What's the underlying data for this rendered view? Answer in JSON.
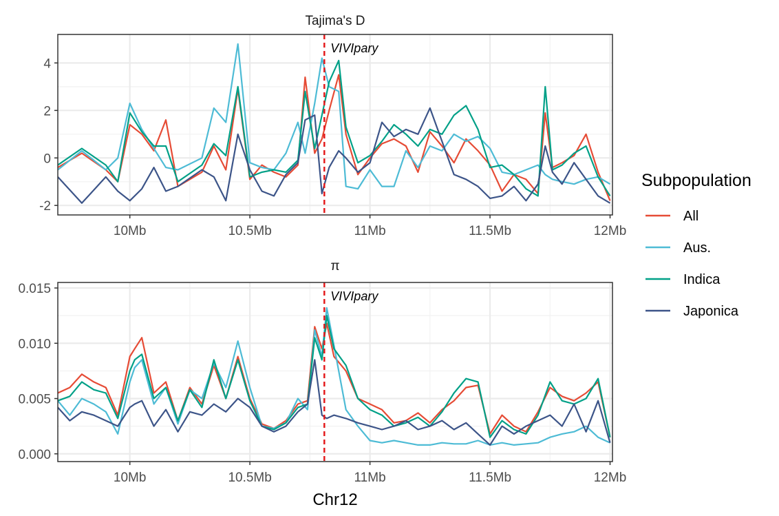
{
  "chart_data": {
    "type": "line",
    "xlabel": "Chr12",
    "x_ticks": [
      "10Mb",
      "10.5Mb",
      "11Mb",
      "11.5Mb",
      "12Mb"
    ],
    "x_tick_values": [
      10.0,
      10.5,
      11.0,
      11.5,
      12.0
    ],
    "xlim": [
      9.7,
      12.01
    ],
    "marker": {
      "x": 10.81,
      "label": "VIVIpary",
      "color": "#e41a1c",
      "style": "dashed"
    },
    "legend": {
      "title": "Subpopulation",
      "position": "right",
      "items": [
        {
          "name": "All",
          "color": "#e64b35"
        },
        {
          "name": "Aus.",
          "color": "#4dbbd5"
        },
        {
          "name": "Indica",
          "color": "#00a087"
        },
        {
          "name": "Japonica",
          "color": "#3c5488"
        }
      ]
    },
    "panels": [
      {
        "title": "Tajima's D",
        "y_ticks": [
          "-2",
          "0",
          "2",
          "4"
        ],
        "y_tick_values": [
          -2,
          0,
          2,
          4
        ],
        "ylim": [
          -2.4,
          5.2
        ],
        "grid": true,
        "x": [
          9.7,
          9.8,
          9.9,
          9.95,
          10.0,
          10.05,
          10.1,
          10.15,
          10.2,
          10.3,
          10.35,
          10.4,
          10.45,
          10.5,
          10.55,
          10.6,
          10.65,
          10.7,
          10.73,
          10.77,
          10.8,
          10.83,
          10.87,
          10.9,
          10.95,
          11.0,
          11.05,
          11.1,
          11.15,
          11.2,
          11.25,
          11.3,
          11.35,
          11.4,
          11.45,
          11.5,
          11.55,
          11.6,
          11.65,
          11.7,
          11.73,
          11.76,
          11.8,
          11.85,
          11.9,
          11.95,
          12.0
        ],
        "series": [
          {
            "name": "All",
            "values": [
              -0.4,
              0.2,
              -0.5,
              -1.0,
              1.4,
              1.0,
              0.3,
              1.6,
              -1.2,
              -0.6,
              0.5,
              -0.5,
              2.9,
              -0.9,
              -0.3,
              -0.6,
              -0.8,
              -0.3,
              3.4,
              0.2,
              0.8,
              2.0,
              3.5,
              1.0,
              -0.7,
              0.0,
              0.6,
              0.8,
              0.5,
              -0.6,
              1.1,
              0.5,
              -0.2,
              0.8,
              0.3,
              -0.3,
              -1.4,
              -0.7,
              -0.9,
              -1.5,
              1.9,
              -0.4,
              -0.2,
              0.1,
              1.0,
              -0.6,
              -1.8
            ]
          },
          {
            "name": "Aus.",
            "values": [
              -0.5,
              0.3,
              -0.5,
              0.0,
              2.3,
              1.2,
              0.4,
              -0.4,
              -0.5,
              0.0,
              2.1,
              1.5,
              4.8,
              -0.2,
              -0.4,
              -0.5,
              0.2,
              1.5,
              0.2,
              2.3,
              4.2,
              3.0,
              2.8,
              -1.2,
              -1.3,
              -0.5,
              -1.2,
              -1.2,
              0.3,
              -0.4,
              0.5,
              0.3,
              1.0,
              0.7,
              0.9,
              0.4,
              -0.6,
              -0.7,
              -0.5,
              -0.3,
              -0.7,
              -0.9,
              -1.0,
              -1.1,
              -0.9,
              -0.8,
              -1.1
            ]
          },
          {
            "name": "Indica",
            "values": [
              -0.3,
              0.4,
              -0.3,
              -1.0,
              1.9,
              1.1,
              0.5,
              0.5,
              -1.0,
              -0.3,
              0.6,
              0.1,
              3.0,
              -0.8,
              -0.6,
              -0.5,
              -0.6,
              -0.1,
              2.8,
              0.4,
              1.8,
              3.2,
              4.1,
              1.3,
              -0.2,
              0.1,
              0.7,
              1.4,
              1.0,
              0.5,
              1.2,
              1.0,
              1.8,
              2.2,
              1.2,
              -0.4,
              -0.3,
              -0.7,
              -1.3,
              -1.6,
              3.0,
              -0.5,
              -0.3,
              0.2,
              0.5,
              -0.8,
              -1.6
            ]
          },
          {
            "name": "Japonica",
            "values": [
              -0.8,
              -1.9,
              -0.8,
              -1.4,
              -1.8,
              -1.3,
              -0.4,
              -1.4,
              -1.2,
              -0.5,
              -0.8,
              -1.8,
              1.0,
              -0.5,
              -1.4,
              -1.6,
              -0.7,
              -0.2,
              1.6,
              1.8,
              -1.5,
              -0.4,
              0.3,
              0.0,
              -0.6,
              -0.2,
              1.5,
              0.9,
              1.2,
              1.0,
              2.1,
              0.7,
              -0.7,
              -0.9,
              -1.2,
              -1.7,
              -1.6,
              -1.2,
              -1.8,
              -1.1,
              0.5,
              -0.6,
              -1.1,
              -0.2,
              -0.9,
              -1.6,
              -1.9
            ]
          }
        ]
      },
      {
        "title": "π",
        "y_ticks": [
          "0.000",
          "0.005",
          "0.010",
          "0.015"
        ],
        "y_tick_values": [
          0.0,
          0.005,
          0.01,
          0.015
        ],
        "ylim": [
          -0.0007,
          0.0155
        ],
        "grid": true,
        "x": [
          9.7,
          9.75,
          9.8,
          9.85,
          9.9,
          9.95,
          10.0,
          10.02,
          10.05,
          10.1,
          10.15,
          10.2,
          10.25,
          10.3,
          10.35,
          10.4,
          10.45,
          10.5,
          10.55,
          10.6,
          10.65,
          10.7,
          10.74,
          10.77,
          10.8,
          10.82,
          10.85,
          10.9,
          10.95,
          11.0,
          11.05,
          11.1,
          11.15,
          11.2,
          11.25,
          11.3,
          11.35,
          11.4,
          11.45,
          11.5,
          11.55,
          11.6,
          11.65,
          11.7,
          11.75,
          11.8,
          11.85,
          11.9,
          11.95,
          12.0
        ],
        "series": [
          {
            "name": "All",
            "values": [
              0.0055,
              0.006,
              0.0072,
              0.0065,
              0.006,
              0.0035,
              0.0088,
              0.0095,
              0.0105,
              0.0055,
              0.0065,
              0.003,
              0.006,
              0.0045,
              0.008,
              0.005,
              0.0088,
              0.005,
              0.0027,
              0.0023,
              0.003,
              0.0045,
              0.0048,
              0.0115,
              0.0095,
              0.0118,
              0.0088,
              0.0075,
              0.005,
              0.0045,
              0.004,
              0.0028,
              0.003,
              0.0037,
              0.0028,
              0.004,
              0.0048,
              0.006,
              0.0062,
              0.0018,
              0.0035,
              0.0025,
              0.002,
              0.0038,
              0.006,
              0.0052,
              0.0048,
              0.0055,
              0.0065,
              0.0015
            ]
          },
          {
            "name": "Aus.",
            "values": [
              0.0048,
              0.0035,
              0.005,
              0.0045,
              0.0038,
              0.0018,
              0.0065,
              0.0078,
              0.0085,
              0.0045,
              0.006,
              0.0027,
              0.0058,
              0.005,
              0.0082,
              0.006,
              0.0102,
              0.006,
              0.0025,
              0.0023,
              0.0028,
              0.005,
              0.004,
              0.0112,
              0.0088,
              0.0132,
              0.0098,
              0.004,
              0.0025,
              0.0012,
              0.001,
              0.0012,
              0.001,
              0.0008,
              0.0008,
              0.001,
              0.0009,
              0.0009,
              0.0012,
              0.0008,
              0.001,
              0.0008,
              0.0009,
              0.001,
              0.0015,
              0.0018,
              0.002,
              0.0025,
              0.0015,
              0.001
            ]
          },
          {
            "name": "Indica",
            "values": [
              0.0048,
              0.0052,
              0.0065,
              0.0058,
              0.0055,
              0.0032,
              0.0075,
              0.0085,
              0.009,
              0.005,
              0.006,
              0.003,
              0.0058,
              0.0042,
              0.0085,
              0.005,
              0.0085,
              0.0048,
              0.0025,
              0.0022,
              0.0028,
              0.0042,
              0.0045,
              0.0105,
              0.0085,
              0.0125,
              0.0095,
              0.008,
              0.005,
              0.004,
              0.0035,
              0.0025,
              0.0028,
              0.0033,
              0.0025,
              0.0038,
              0.0055,
              0.0068,
              0.0065,
              0.0015,
              0.003,
              0.0022,
              0.0018,
              0.0035,
              0.0065,
              0.0048,
              0.0045,
              0.005,
              0.0068,
              0.0015
            ]
          },
          {
            "name": "Japonica",
            "values": [
              0.0042,
              0.003,
              0.0038,
              0.0035,
              0.003,
              0.0025,
              0.0042,
              0.0045,
              0.0048,
              0.0025,
              0.004,
              0.002,
              0.0038,
              0.0035,
              0.0045,
              0.0038,
              0.005,
              0.0042,
              0.0025,
              0.002,
              0.0025,
              0.0038,
              0.0045,
              0.0085,
              0.0035,
              0.0032,
              0.0035,
              0.0032,
              0.0028,
              0.0025,
              0.0022,
              0.0025,
              0.003,
              0.0022,
              0.0025,
              0.003,
              0.0022,
              0.0028,
              0.0018,
              0.0008,
              0.0025,
              0.0018,
              0.0025,
              0.003,
              0.0035,
              0.0025,
              0.0045,
              0.002,
              0.0048,
              0.001
            ]
          }
        ]
      }
    ]
  }
}
